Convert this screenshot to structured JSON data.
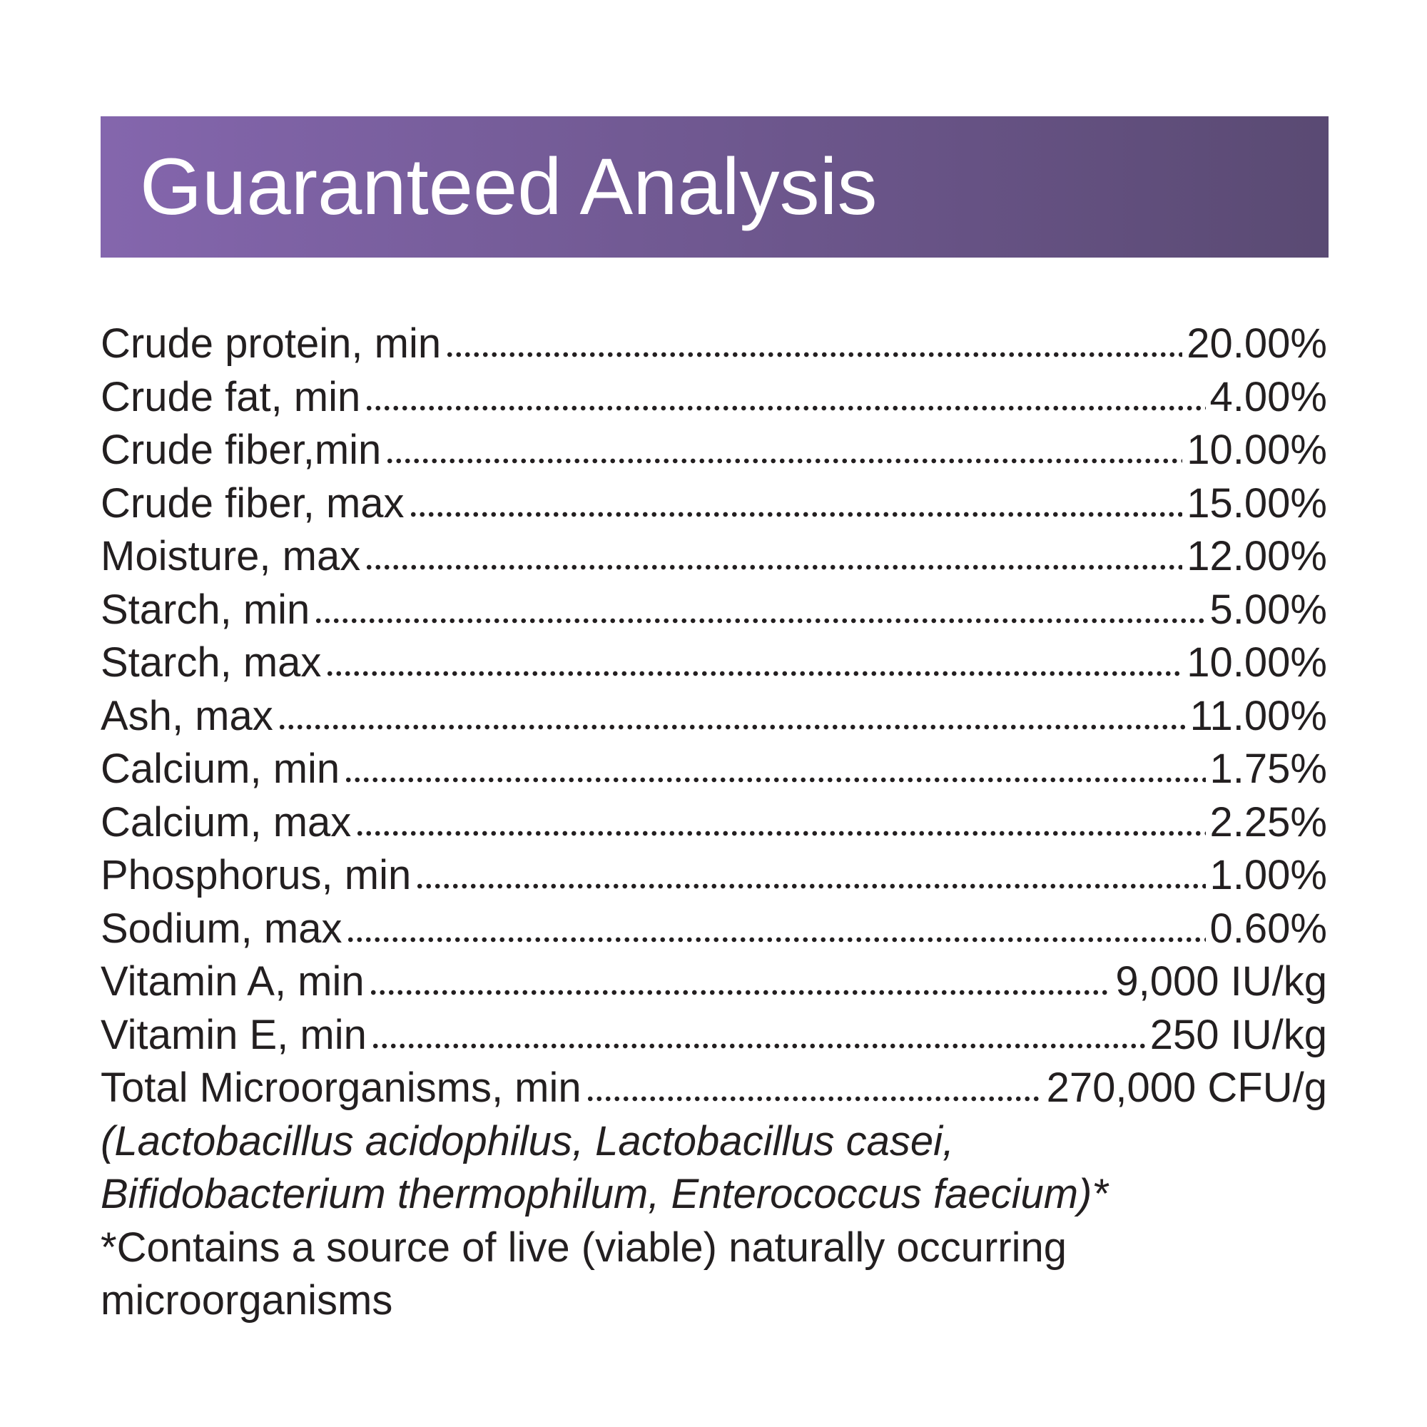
{
  "header": {
    "title": "Guaranteed Analysis"
  },
  "rows": [
    {
      "label": "Crude protein, min",
      "value": "20.00%"
    },
    {
      "label": "Crude fat, min",
      "value": "4.00%"
    },
    {
      "label": "Crude fiber,min",
      "value": "10.00%"
    },
    {
      "label": "Crude fiber, max",
      "value": "15.00%"
    },
    {
      "label": "Moisture, max",
      "value": "12.00%"
    },
    {
      "label": "Starch, min",
      "value": "5.00%"
    },
    {
      "label": "Starch, max",
      "value": "10.00%"
    },
    {
      "label": "Ash, max",
      "value": "11.00%"
    },
    {
      "label": "Calcium, min",
      "value": "1.75%"
    },
    {
      "label": "Calcium, max",
      "value": "2.25%"
    },
    {
      "label": "Phosphorus, min",
      "value": "1.00%"
    },
    {
      "label": "Sodium, max",
      "value": "0.60%"
    },
    {
      "label": "Vitamin A, min",
      "value": "9,000 IU/kg"
    },
    {
      "label": "Vitamin E, min",
      "value": "250 IU/kg"
    },
    {
      "label": "Total Microorganisms, min",
      "value": "270,000 CFU/g"
    }
  ],
  "note": "(Lactobacillus acidophilus, Lactobacillus casei, Bifidobacterium thermophilum, Enterococcus faecium)*",
  "footnote": "*Contains a source of live (viable) naturally occurring microorganisms"
}
